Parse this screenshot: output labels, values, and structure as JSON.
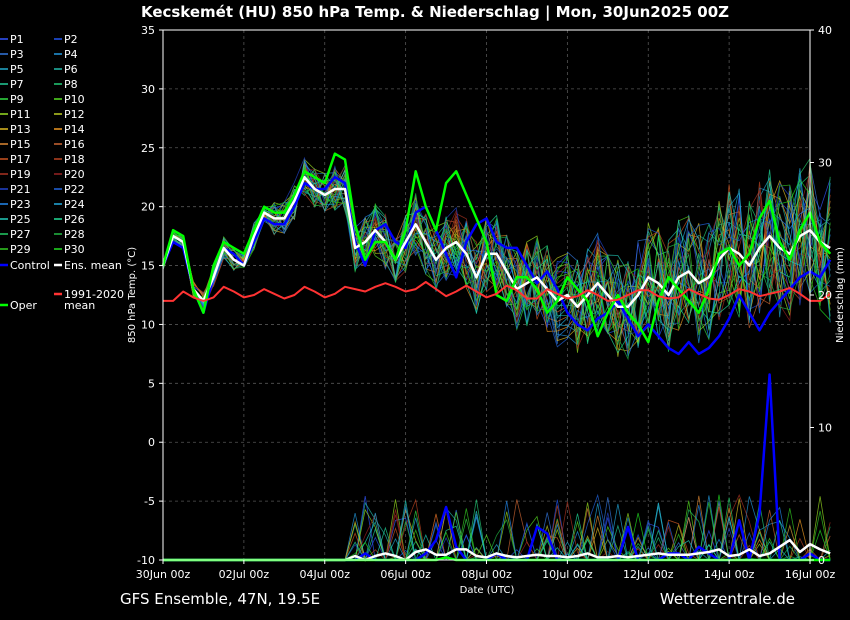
{
  "chart_data": {
    "type": "line",
    "title": "Kecskemét  (HU)  850 hPa Temp. & Niederschlag | Mon, 30Jun2025 00Z",
    "xlabel": "Date (UTC)",
    "ylabel": "850 hPa Temp. (°C)",
    "y2label": "Niederschlag (mm)",
    "footer_left": "GFS Ensemble, 47N, 19.5E",
    "footer_right": "Wetterzentrale.de",
    "ylim": [
      -10,
      35
    ],
    "y2lim": [
      0,
      40
    ],
    "xlim": [
      0,
      384
    ],
    "grid": true,
    "x_ticks": [
      {
        "h": 0,
        "label": "30Jun 00z"
      },
      {
        "h": 48,
        "label": "02Jul 00z"
      },
      {
        "h": 96,
        "label": "04Jul 00z"
      },
      {
        "h": 144,
        "label": "06Jul 00z"
      },
      {
        "h": 192,
        "label": "08Jul 00z"
      },
      {
        "h": 240,
        "label": "10Jul 00z"
      },
      {
        "h": 288,
        "label": "12Jul 00z"
      },
      {
        "h": 336,
        "label": "14Jul 00z"
      },
      {
        "h": 384,
        "label": "16Jul 00z"
      }
    ],
    "y_ticks": [
      35,
      30,
      25,
      20,
      15,
      10,
      5,
      0,
      -5,
      -10
    ],
    "y2_ticks": [
      40,
      30,
      20,
      10,
      0
    ],
    "legend": [
      {
        "name": "P1",
        "color": "#3355ff"
      },
      {
        "name": "P2",
        "color": "#2255ee"
      },
      {
        "name": "P3",
        "color": "#3377dd"
      },
      {
        "name": "P4",
        "color": "#2299dd"
      },
      {
        "name": "P5",
        "color": "#22aacc"
      },
      {
        "name": "P6",
        "color": "#22bbaa"
      },
      {
        "name": "P7",
        "color": "#22cc99"
      },
      {
        "name": "P8",
        "color": "#22cc77"
      },
      {
        "name": "P9",
        "color": "#33dd44"
      },
      {
        "name": "P10",
        "color": "#55dd22"
      },
      {
        "name": "P11",
        "color": "#99dd22"
      },
      {
        "name": "P12",
        "color": "#bbcc22"
      },
      {
        "name": "P13",
        "color": "#ddbb22"
      },
      {
        "name": "P14",
        "color": "#ee9922"
      },
      {
        "name": "P15",
        "color": "#dd8833"
      },
      {
        "name": "P16",
        "color": "#cc6633"
      },
      {
        "name": "P17",
        "color": "#cc5522"
      },
      {
        "name": "P18",
        "color": "#bb4422"
      },
      {
        "name": "P19",
        "color": "#aa3322"
      },
      {
        "name": "P20",
        "color": "#992222"
      },
      {
        "name": "P21",
        "color": "#2244cc"
      },
      {
        "name": "P22",
        "color": "#2266dd"
      },
      {
        "name": "P23",
        "color": "#2288ee"
      },
      {
        "name": "P24",
        "color": "#22aadd"
      },
      {
        "name": "P25",
        "color": "#22ccbb"
      },
      {
        "name": "P26",
        "color": "#22dd99"
      },
      {
        "name": "P27",
        "color": "#22cc66"
      },
      {
        "name": "P28",
        "color": "#22bb44"
      },
      {
        "name": "P29",
        "color": "#33cc22"
      },
      {
        "name": "P30",
        "color": "#22dd22"
      },
      {
        "name": "Control",
        "color": "#0000ff"
      },
      {
        "name": "Ens. mean",
        "color": "#ffffff"
      },
      {
        "name": "Oper",
        "color": "#00ff00"
      },
      {
        "name": "1991-2020 mean",
        "color": "#ff3333"
      }
    ],
    "x_step_hours": 6,
    "series": [
      {
        "name": "Control",
        "role": "temp",
        "color": "#0000ff",
        "values": [
          15,
          17,
          16.5,
          13,
          11,
          14,
          16.5,
          16,
          15,
          17,
          19,
          18.5,
          18.5,
          20,
          22,
          21.5,
          21.5,
          22.5,
          22,
          17,
          15,
          18,
          18.5,
          17,
          16.5,
          19.5,
          20,
          18,
          16,
          14,
          17,
          18.5,
          19,
          17,
          16.5,
          16.5,
          15,
          13.5,
          14.5,
          13,
          11,
          10,
          9.5,
          10.5,
          11,
          12,
          10.5,
          9,
          10,
          9,
          8,
          7.5,
          8.5,
          7.5,
          8,
          9,
          10.5,
          12.5,
          11,
          9.5,
          11,
          12,
          13,
          14,
          14.5,
          14,
          15.5
        ]
      },
      {
        "name": "Ens. mean",
        "role": "temp",
        "color": "#ffffff",
        "values": [
          15,
          17.5,
          17,
          13,
          12,
          14,
          16.5,
          15.5,
          15,
          17.5,
          19.5,
          19,
          19,
          20.5,
          22.5,
          21.5,
          21,
          21.5,
          21.5,
          16.5,
          17,
          18,
          17,
          15.5,
          17,
          18.5,
          17,
          15.5,
          16.5,
          17,
          16,
          14,
          16,
          16,
          14.5,
          13,
          13.5,
          14,
          13,
          12,
          12.5,
          11.5,
          12.5,
          13.5,
          12.5,
          11.5,
          11.5,
          12.5,
          14,
          13.5,
          12.5,
          14,
          14.5,
          13.5,
          14,
          15.5,
          16.5,
          16,
          15,
          16.5,
          17.5,
          16.5,
          16,
          17.5,
          18,
          17,
          16.5
        ]
      },
      {
        "name": "Oper",
        "role": "temp",
        "color": "#00ff00",
        "values": [
          15,
          18,
          17.5,
          13,
          11,
          15,
          17,
          16.5,
          16,
          18,
          20,
          19.5,
          19.5,
          21,
          23,
          22.5,
          22,
          24.5,
          24,
          18.5,
          15.5,
          17,
          17,
          15.5,
          18,
          23,
          20,
          18,
          22,
          23,
          21,
          19,
          17,
          12.5,
          12,
          14,
          14,
          13,
          11,
          12,
          14,
          13,
          12,
          9,
          11,
          12.5,
          11,
          10,
          8.5,
          12,
          14,
          13,
          12,
          11,
          13,
          16,
          16.5,
          15,
          16,
          19,
          20.5,
          17,
          15.5,
          18,
          19.5,
          17,
          16
        ]
      },
      {
        "name": "1991-2020 mean",
        "role": "temp",
        "color": "#ff3333",
        "values": [
          12,
          12,
          12.8,
          12.3,
          12,
          12.3,
          13.2,
          12.8,
          12.3,
          12.5,
          13,
          12.6,
          12.2,
          12.5,
          13.2,
          12.8,
          12.3,
          12.6,
          13.2,
          13,
          12.8,
          13.2,
          13.5,
          13.2,
          12.8,
          13,
          13.6,
          13,
          12.4,
          12.8,
          13.3,
          12.8,
          12.3,
          12.6,
          13.3,
          12.9,
          12.2,
          12.2,
          13,
          12.6,
          12.2,
          12.4,
          12.9,
          12.5,
          12,
          12.1,
          12.5,
          12.9,
          12.9,
          12.4,
          12.2,
          12.3,
          13,
          12.6,
          12.2,
          12.1,
          12.5,
          13,
          12.8,
          12.4,
          12.6,
          12.8,
          13.1,
          12.6,
          12,
          12,
          12.6
        ]
      },
      {
        "name": "Control precip",
        "role": "precip",
        "color": "#0000ff",
        "values": [
          0,
          0,
          0,
          0,
          0,
          0,
          0,
          0,
          0,
          0,
          0,
          0,
          0,
          0,
          0,
          0,
          0,
          0,
          0,
          0,
          0.5,
          0,
          0,
          0,
          0,
          0,
          0.5,
          1.5,
          4,
          1,
          0,
          0,
          0,
          0.5,
          0,
          0,
          0,
          2.5,
          2,
          0,
          0,
          0,
          0,
          0,
          0,
          0,
          2.5,
          0,
          0,
          0,
          0.5,
          0.5,
          0,
          1,
          0.5,
          0,
          0,
          3,
          0,
          3.5,
          14,
          0,
          0,
          0,
          0.5,
          0,
          0
        ]
      },
      {
        "name": "Ens. mean precip",
        "role": "precip",
        "color": "#ffffff",
        "values": [
          0,
          0,
          0,
          0,
          0,
          0,
          0,
          0,
          0,
          0,
          0,
          0,
          0,
          0,
          0,
          0,
          0,
          0,
          0,
          0.3,
          0,
          0.3,
          0.5,
          0.3,
          0,
          0.6,
          0.8,
          0.4,
          0.4,
          0.8,
          0.8,
          0.3,
          0.2,
          0.5,
          0.3,
          0.2,
          0.3,
          0.4,
          0.3,
          0.3,
          0.2,
          0.3,
          0.5,
          0.2,
          0.2,
          0.3,
          0.2,
          0.3,
          0.4,
          0.5,
          0.4,
          0.4,
          0.4,
          0.5,
          0.6,
          0.8,
          0.3,
          0.4,
          0.8,
          0.3,
          0.5,
          1.0,
          1.5,
          0.6,
          1.2,
          0.8,
          0.5
        ]
      },
      {
        "name": "Oper precip",
        "role": "precip",
        "color": "#00ff00",
        "values": [
          0,
          0,
          0,
          0,
          0,
          0,
          0,
          0,
          0,
          0,
          0,
          0,
          0,
          0,
          0,
          0,
          0,
          0,
          0,
          0,
          0,
          0,
          0,
          0,
          0,
          0,
          0,
          0,
          0.2,
          0,
          0,
          0,
          0,
          0,
          0,
          0,
          0,
          0,
          0,
          0,
          0,
          0,
          0,
          0,
          0,
          0,
          0,
          0,
          0,
          0,
          0,
          0,
          0,
          0,
          0,
          0,
          0,
          0,
          0,
          0,
          0,
          0,
          0,
          0,
          0,
          0,
          0
        ]
      }
    ]
  }
}
